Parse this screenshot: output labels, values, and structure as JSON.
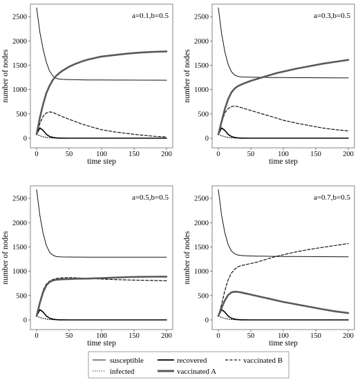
{
  "chart_data": [
    {
      "type": "line",
      "annotation": "a=0.1,b=0.5",
      "xlabel": "time step",
      "ylabel": "number of nodes",
      "xlim": [
        0,
        200
      ],
      "ylim": [
        0,
        2700
      ],
      "xticks": [
        0,
        50,
        100,
        150,
        200
      ],
      "yticks": [
        0,
        500,
        1000,
        1500,
        2000,
        2500
      ],
      "x": [
        0,
        5,
        10,
        15,
        20,
        25,
        30,
        35,
        40,
        50,
        60,
        70,
        80,
        90,
        100,
        120,
        140,
        160,
        180,
        200
      ],
      "series": [
        {
          "name": "susceptible",
          "values": [
            2680,
            2180,
            1830,
            1560,
            1380,
            1280,
            1230,
            1215,
            1210,
            1205,
            1203,
            1200,
            1198,
            1197,
            1196,
            1195,
            1195,
            1194,
            1193,
            1192
          ]
        },
        {
          "name": "infected",
          "values": [
            80,
            50,
            30,
            15,
            8,
            4,
            2,
            1,
            0,
            0,
            0,
            0,
            0,
            0,
            0,
            0,
            0,
            0,
            0,
            0
          ]
        },
        {
          "name": "recovered",
          "values": [
            80,
            210,
            160,
            80,
            35,
            15,
            6,
            2,
            1,
            0,
            0,
            0,
            0,
            0,
            0,
            0,
            0,
            0,
            0,
            0
          ]
        },
        {
          "name": "vaccinated A",
          "values": [
            80,
            420,
            700,
            930,
            1080,
            1200,
            1280,
            1340,
            1390,
            1470,
            1530,
            1580,
            1620,
            1650,
            1680,
            1710,
            1740,
            1760,
            1775,
            1785
          ]
        },
        {
          "name": "vaccinated B",
          "values": [
            80,
            300,
            450,
            520,
            540,
            530,
            500,
            470,
            440,
            390,
            340,
            290,
            250,
            210,
            175,
            130,
            95,
            65,
            40,
            25
          ]
        }
      ]
    },
    {
      "type": "line",
      "annotation": "a=0.3,b=0.5",
      "xlabel": "time step",
      "ylabel": "number of nodes",
      "xlim": [
        0,
        200
      ],
      "ylim": [
        0,
        2700
      ],
      "xticks": [
        0,
        50,
        100,
        150,
        200
      ],
      "yticks": [
        0,
        500,
        1000,
        1500,
        2000,
        2500
      ],
      "x": [
        0,
        5,
        10,
        15,
        20,
        25,
        30,
        35,
        40,
        50,
        60,
        70,
        80,
        90,
        100,
        120,
        140,
        160,
        180,
        200
      ],
      "series": [
        {
          "name": "susceptible",
          "values": [
            2680,
            2150,
            1780,
            1520,
            1370,
            1300,
            1270,
            1262,
            1258,
            1255,
            1252,
            1250,
            1248,
            1247,
            1246,
            1244,
            1243,
            1242,
            1241,
            1240
          ]
        },
        {
          "name": "infected",
          "values": [
            80,
            50,
            30,
            15,
            8,
            4,
            2,
            1,
            0,
            0,
            0,
            0,
            0,
            0,
            0,
            0,
            0,
            0,
            0,
            0
          ]
        },
        {
          "name": "recovered",
          "values": [
            80,
            210,
            160,
            80,
            35,
            15,
            6,
            2,
            1,
            0,
            0,
            0,
            0,
            0,
            0,
            0,
            0,
            0,
            0,
            0
          ]
        },
        {
          "name": "vaccinated A",
          "values": [
            80,
            340,
            600,
            800,
            940,
            1020,
            1070,
            1100,
            1130,
            1180,
            1220,
            1260,
            1300,
            1340,
            1370,
            1430,
            1480,
            1530,
            1570,
            1610
          ]
        },
        {
          "name": "vaccinated B",
          "values": [
            80,
            320,
            520,
            610,
            650,
            660,
            650,
            630,
            610,
            570,
            530,
            490,
            450,
            410,
            370,
            310,
            260,
            210,
            175,
            150
          ]
        }
      ]
    },
    {
      "type": "line",
      "annotation": "a=0.5,b=0.5",
      "xlabel": "time step",
      "ylabel": "number of nodes",
      "xlim": [
        0,
        200
      ],
      "ylim": [
        0,
        2700
      ],
      "xticks": [
        0,
        50,
        100,
        150,
        200
      ],
      "yticks": [
        0,
        500,
        1000,
        1500,
        2000,
        2500
      ],
      "x": [
        0,
        5,
        10,
        15,
        20,
        25,
        30,
        35,
        40,
        50,
        60,
        70,
        80,
        90,
        100,
        120,
        140,
        160,
        180,
        200
      ],
      "series": [
        {
          "name": "susceptible",
          "values": [
            2680,
            2150,
            1780,
            1530,
            1390,
            1330,
            1305,
            1298,
            1295,
            1293,
            1292,
            1292,
            1291,
            1291,
            1290,
            1290,
            1290,
            1290,
            1289,
            1289
          ]
        },
        {
          "name": "infected",
          "values": [
            80,
            50,
            30,
            15,
            8,
            4,
            2,
            1,
            0,
            0,
            0,
            0,
            0,
            0,
            0,
            0,
            0,
            0,
            0,
            0
          ]
        },
        {
          "name": "recovered",
          "values": [
            80,
            210,
            160,
            80,
            35,
            15,
            6,
            2,
            1,
            0,
            0,
            0,
            0,
            0,
            0,
            0,
            0,
            0,
            0,
            0
          ]
        },
        {
          "name": "vaccinated A",
          "values": [
            80,
            350,
            570,
            710,
            780,
            810,
            825,
            830,
            835,
            840,
            845,
            848,
            850,
            855,
            860,
            870,
            880,
            885,
            888,
            890
          ]
        },
        {
          "name": "vaccinated B",
          "values": [
            80,
            380,
            610,
            740,
            800,
            830,
            850,
            860,
            865,
            870,
            865,
            858,
            850,
            845,
            840,
            830,
            822,
            815,
            810,
            805
          ]
        }
      ]
    },
    {
      "type": "line",
      "annotation": "a=0.7,b=0.5",
      "xlabel": "time step",
      "ylabel": "number of nodes",
      "xlim": [
        0,
        200
      ],
      "ylim": [
        0,
        2700
      ],
      "xticks": [
        0,
        50,
        100,
        150,
        200
      ],
      "yticks": [
        0,
        500,
        1000,
        1500,
        2000,
        2500
      ],
      "x": [
        0,
        5,
        10,
        15,
        20,
        25,
        30,
        35,
        40,
        50,
        60,
        70,
        80,
        90,
        100,
        120,
        140,
        160,
        180,
        200
      ],
      "series": [
        {
          "name": "susceptible",
          "values": [
            2680,
            2150,
            1790,
            1550,
            1420,
            1360,
            1335,
            1325,
            1320,
            1315,
            1312,
            1310,
            1308,
            1306,
            1305,
            1303,
            1302,
            1300,
            1299,
            1298
          ]
        },
        {
          "name": "infected",
          "values": [
            80,
            50,
            30,
            15,
            8,
            4,
            2,
            1,
            0,
            0,
            0,
            0,
            0,
            0,
            0,
            0,
            0,
            0,
            0,
            0
          ]
        },
        {
          "name": "recovered",
          "values": [
            80,
            210,
            160,
            80,
            35,
            15,
            6,
            2,
            1,
            0,
            0,
            0,
            0,
            0,
            0,
            0,
            0,
            0,
            0,
            0
          ]
        },
        {
          "name": "vaccinated A",
          "values": [
            80,
            250,
            400,
            510,
            565,
            580,
            575,
            565,
            550,
            520,
            490,
            460,
            430,
            400,
            370,
            320,
            270,
            220,
            175,
            140
          ]
        },
        {
          "name": "vaccinated B",
          "values": [
            80,
            320,
            600,
            820,
            960,
            1040,
            1090,
            1115,
            1130,
            1160,
            1190,
            1230,
            1270,
            1310,
            1340,
            1400,
            1450,
            1490,
            1530,
            1570
          ]
        }
      ]
    }
  ],
  "legend": {
    "entries": [
      {
        "label": "susceptible",
        "style": "thin"
      },
      {
        "label": "infected",
        "style": "dotted"
      },
      {
        "label": "recovered",
        "style": "solid"
      },
      {
        "label": "vaccinated A",
        "style": "thick-gray"
      },
      {
        "label": "vaccinated B",
        "style": "dashed"
      }
    ]
  },
  "colors": {
    "susceptible": "#111111",
    "infected": "#111111",
    "recovered": "#000000",
    "vaccinated A": "#595959",
    "vaccinated B": "#111111",
    "frame": "#666666"
  }
}
